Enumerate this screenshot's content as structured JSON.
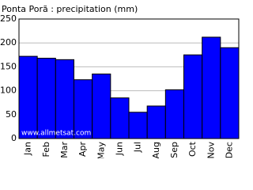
{
  "chart_data": {
    "type": "bar",
    "title": "Ponta Porã : precipitation (mm)",
    "categories": [
      "Jan",
      "Feb",
      "Mar",
      "Apr",
      "May",
      "Jun",
      "Jul",
      "Aug",
      "Sep",
      "Oct",
      "Nov",
      "Dec"
    ],
    "values": [
      172,
      168,
      165,
      123,
      135,
      85,
      55,
      68,
      102,
      175,
      212,
      190
    ],
    "color": "#0000ff",
    "ylim": [
      0,
      250
    ],
    "yticks": [
      0,
      50,
      100,
      150,
      200,
      250
    ],
    "grid": true,
    "watermark": "www.allmetsat.com"
  }
}
